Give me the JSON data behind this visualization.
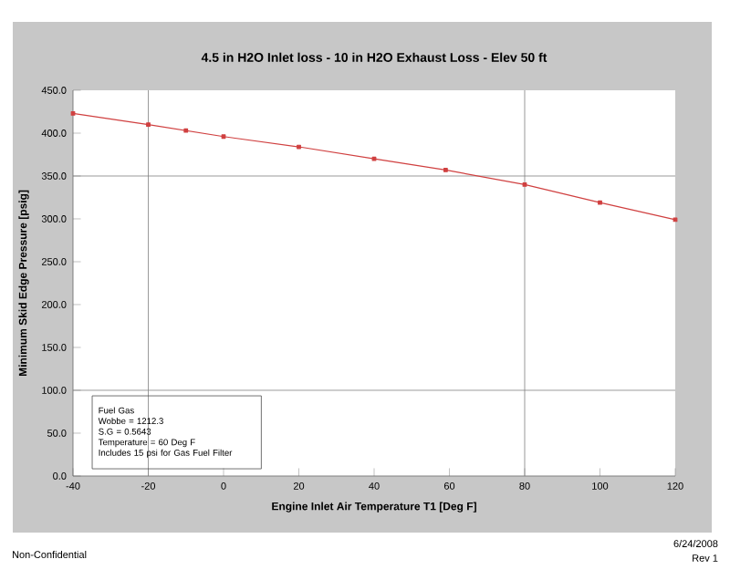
{
  "chart_data": {
    "type": "line",
    "title": "4.5 in H2O Inlet  loss - 10 in H2O Exhaust Loss - Elev 50 ft",
    "xlabel": "Engine Inlet Air Temperature T1 [Deg F]",
    "ylabel": "Minimum Skid Edge Pressure [psig]",
    "x": [
      -40,
      -20,
      -10,
      0,
      20,
      40,
      59,
      80,
      100,
      120
    ],
    "series": [
      {
        "color": "#d04040",
        "values": [
          423,
          410,
          403,
          396,
          384,
          370,
          357,
          340,
          319,
          299
        ]
      }
    ],
    "xlim": [
      -40,
      120
    ],
    "xticks": [
      -40,
      -20,
      0,
      20,
      40,
      60,
      80,
      100,
      120
    ],
    "ylim": [
      0,
      450
    ],
    "yticks": [
      {
        "value": 0,
        "label": "0.0"
      },
      {
        "value": 50,
        "label": "50.0"
      },
      {
        "value": 100,
        "label": "100.0"
      },
      {
        "value": 150,
        "label": "150.0"
      },
      {
        "value": 200,
        "label": "200.0"
      },
      {
        "value": 250,
        "label": "250.0"
      },
      {
        "value": 300,
        "label": "300.0"
      },
      {
        "value": 350,
        "label": "350.0"
      },
      {
        "value": 400,
        "label": "400.0"
      },
      {
        "value": 450,
        "label": "450.0"
      }
    ],
    "ref_lines": [
      {
        "axis": "x",
        "value": -20,
        "color": "#808080"
      },
      {
        "axis": "x",
        "value": 80,
        "color": "#808080"
      },
      {
        "axis": "y",
        "value": 100,
        "color": "#808080"
      },
      {
        "axis": "y",
        "value": 350,
        "color": "#808080"
      }
    ],
    "marker": "square",
    "line_style": "solid",
    "annotations": [
      "Fuel Gas",
      "Wobbe = 1212.3",
      "S.G = 0.5643",
      "Temperature = 60 Deg F",
      "Includes 15 psi for Gas Fuel Filter",
      "Non-Confidential",
      "6/24/2008",
      "Rev 1"
    ]
  }
}
